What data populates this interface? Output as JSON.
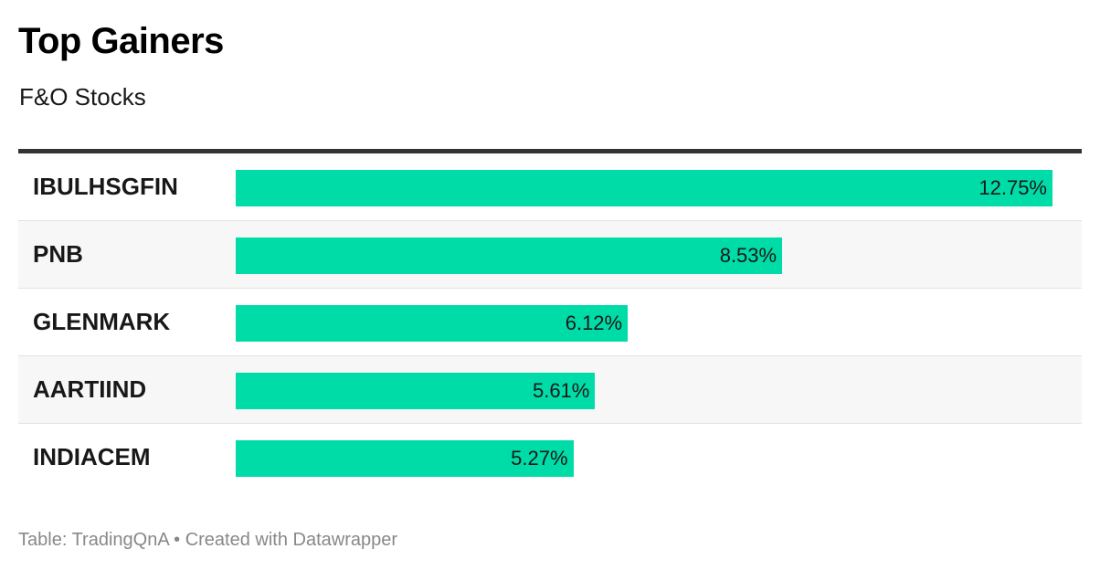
{
  "title": "Top Gainers",
  "subtitle": "F&O Stocks",
  "footer": {
    "source_label": "Table: ",
    "source_name": "TradingQnA",
    "separator": " • ",
    "credit": "Created with Datawrapper"
  },
  "colors": {
    "bar": "#00dca8",
    "header_rule": "#333333",
    "alt_row": "#f7f7f7"
  },
  "chart_data": {
    "type": "bar",
    "title": "Top Gainers",
    "subtitle": "F&O Stocks",
    "orientation": "horizontal",
    "categories": [
      "IBULHSGFIN",
      "PNB",
      "GLENMARK",
      "AARTIIND",
      "INDIACEM"
    ],
    "values": [
      12.75,
      8.53,
      6.12,
      5.61,
      5.27
    ],
    "value_labels": [
      "12.75%",
      "8.53%",
      "6.12%",
      "5.61%",
      "5.27%"
    ],
    "unit": "%",
    "xlim": [
      0,
      12.75
    ],
    "grid": false
  }
}
